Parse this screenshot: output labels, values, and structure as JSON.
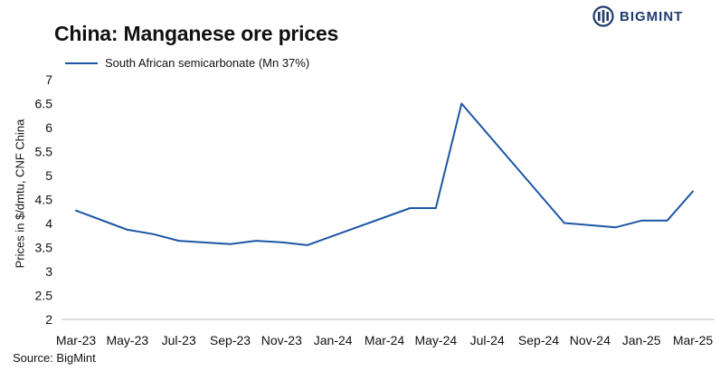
{
  "brand": {
    "name": "BIGMINT",
    "logo_icon": "bigmint-logo-icon",
    "color": "#1f3a6e"
  },
  "source": "Source:  BigMint",
  "chart_data": {
    "type": "line",
    "title": "China: Manganese ore prices",
    "ylabel": "Prices in $/dmtu, CNF China",
    "xlabel": "",
    "ylim": [
      2,
      7
    ],
    "yticks": [
      2,
      2.5,
      3,
      3.5,
      4,
      4.5,
      5,
      5.5,
      6,
      6.5,
      7
    ],
    "ytick_labels": [
      "2",
      "2.5",
      "3",
      "3.5",
      "4",
      "4.5",
      "5",
      "5.5",
      "6",
      "6.5",
      "7"
    ],
    "grid": false,
    "legend_position": "top-left",
    "x_ticks": [
      "Mar-23",
      "May-23",
      "Jul-23",
      "Sep-23",
      "Nov-23",
      "Jan-24",
      "Mar-24",
      "May-24",
      "Jul-24",
      "Sep-24",
      "Nov-24",
      "Jan-25",
      "Mar-25"
    ],
    "series": [
      {
        "name": "South African semicarbonate (Mn 37%)",
        "color": "#1d56a5",
        "points": [
          [
            "Mar-23",
            4.27
          ],
          [
            "May-23",
            3.87
          ],
          [
            "Jun-23",
            3.78
          ],
          [
            "Jul-23",
            3.64
          ],
          [
            "Sep-23",
            3.57
          ],
          [
            "Oct-23",
            3.64
          ],
          [
            "Nov-23",
            3.61
          ],
          [
            "Dec-23",
            3.55
          ],
          [
            "Apr-24",
            4.32
          ],
          [
            "May-24",
            4.32
          ],
          [
            "Jun-24",
            6.5
          ],
          [
            "Oct-24",
            4.01
          ],
          [
            "Dec-24",
            3.92
          ],
          [
            "Jan-25",
            4.06
          ],
          [
            "Feb-25",
            4.06
          ],
          [
            "Mar-25",
            4.67
          ]
        ]
      }
    ]
  }
}
